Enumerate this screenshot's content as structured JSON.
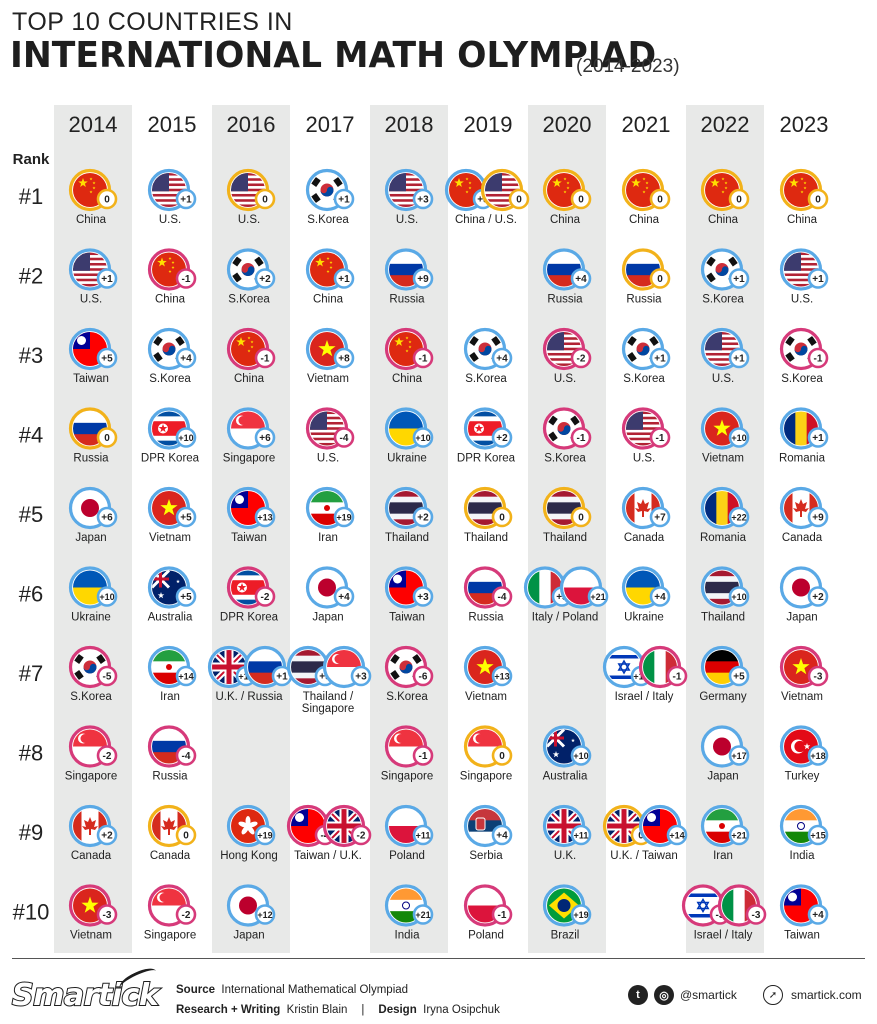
{
  "header": {
    "line1": "TOP 10 COUNTRIES IN",
    "line2": "INTERNATIONAL MATH OLYMPIAD",
    "years": "(2014-2023)"
  },
  "chart_data": {
    "type": "table",
    "rank_label": "Rank",
    "years": [
      "2014",
      "2015",
      "2016",
      "2017",
      "2018",
      "2019",
      "2020",
      "2021",
      "2022",
      "2023"
    ],
    "ranks": [
      "#1",
      "#2",
      "#3",
      "#4",
      "#5",
      "#6",
      "#7",
      "#8",
      "#9",
      "#10"
    ],
    "cells": [
      [
        {
          "label": "China",
          "flags": [
            "CN"
          ],
          "changes": [
            "0"
          ]
        },
        {
          "label": "U.S.",
          "flags": [
            "US"
          ],
          "changes": [
            "+1"
          ]
        },
        {
          "label": "U.S.",
          "flags": [
            "US"
          ],
          "changes": [
            "0"
          ]
        },
        {
          "label": "S.Korea",
          "flags": [
            "KR"
          ],
          "changes": [
            "+1"
          ]
        },
        {
          "label": "U.S.",
          "flags": [
            "US"
          ],
          "changes": [
            "+3"
          ]
        },
        {
          "label": "China / U.S.",
          "flags": [
            "CN",
            "US"
          ],
          "changes": [
            "+3",
            "0"
          ]
        },
        {
          "label": "China",
          "flags": [
            "CN"
          ],
          "changes": [
            "0"
          ]
        },
        {
          "label": "China",
          "flags": [
            "CN"
          ],
          "changes": [
            "0"
          ]
        },
        {
          "label": "China",
          "flags": [
            "CN"
          ],
          "changes": [
            "0"
          ]
        },
        {
          "label": "China",
          "flags": [
            "CN"
          ],
          "changes": [
            "0"
          ]
        }
      ],
      [
        {
          "label": "U.S.",
          "flags": [
            "US"
          ],
          "changes": [
            "+1"
          ]
        },
        {
          "label": "China",
          "flags": [
            "CN"
          ],
          "changes": [
            "-1"
          ]
        },
        {
          "label": "S.Korea",
          "flags": [
            "KR"
          ],
          "changes": [
            "+2"
          ]
        },
        {
          "label": "China",
          "flags": [
            "CN"
          ],
          "changes": [
            "+1"
          ]
        },
        {
          "label": "Russia",
          "flags": [
            "RU"
          ],
          "changes": [
            "+9"
          ]
        },
        null,
        {
          "label": "Russia",
          "flags": [
            "RU"
          ],
          "changes": [
            "+4"
          ]
        },
        {
          "label": "Russia",
          "flags": [
            "RU"
          ],
          "changes": [
            "0"
          ]
        },
        {
          "label": "S.Korea",
          "flags": [
            "KR"
          ],
          "changes": [
            "+1"
          ]
        },
        {
          "label": "U.S.",
          "flags": [
            "US"
          ],
          "changes": [
            "+1"
          ]
        }
      ],
      [
        {
          "label": "Taiwan",
          "flags": [
            "TW"
          ],
          "changes": [
            "+5"
          ]
        },
        {
          "label": "S.Korea",
          "flags": [
            "KR"
          ],
          "changes": [
            "+4"
          ]
        },
        {
          "label": "China",
          "flags": [
            "CN"
          ],
          "changes": [
            "-1"
          ]
        },
        {
          "label": "Vietnam",
          "flags": [
            "VN"
          ],
          "changes": [
            "+8"
          ]
        },
        {
          "label": "China",
          "flags": [
            "CN"
          ],
          "changes": [
            "-1"
          ]
        },
        {
          "label": "S.Korea",
          "flags": [
            "KR"
          ],
          "changes": [
            "+4"
          ]
        },
        {
          "label": "U.S.",
          "flags": [
            "US"
          ],
          "changes": [
            "-2"
          ]
        },
        {
          "label": "S.Korea",
          "flags": [
            "KR"
          ],
          "changes": [
            "+1"
          ]
        },
        {
          "label": "U.S.",
          "flags": [
            "US"
          ],
          "changes": [
            "+1"
          ]
        },
        {
          "label": "S.Korea",
          "flags": [
            "KR"
          ],
          "changes": [
            "-1"
          ]
        }
      ],
      [
        {
          "label": "Russia",
          "flags": [
            "RU"
          ],
          "changes": [
            "0"
          ]
        },
        {
          "label": "DPR Korea",
          "flags": [
            "KP"
          ],
          "changes": [
            "+10"
          ]
        },
        {
          "label": "Singapore",
          "flags": [
            "SG"
          ],
          "changes": [
            "+6"
          ]
        },
        {
          "label": "U.S.",
          "flags": [
            "US"
          ],
          "changes": [
            "-4"
          ]
        },
        {
          "label": "Ukraine",
          "flags": [
            "UA"
          ],
          "changes": [
            "+10"
          ]
        },
        {
          "label": "DPR Korea",
          "flags": [
            "KP"
          ],
          "changes": [
            "+2"
          ]
        },
        {
          "label": "S.Korea",
          "flags": [
            "KR"
          ],
          "changes": [
            "-1"
          ]
        },
        {
          "label": "U.S.",
          "flags": [
            "US"
          ],
          "changes": [
            "-1"
          ]
        },
        {
          "label": "Vietnam",
          "flags": [
            "VN"
          ],
          "changes": [
            "+10"
          ]
        },
        {
          "label": "Romania",
          "flags": [
            "RO"
          ],
          "changes": [
            "+1"
          ]
        }
      ],
      [
        {
          "label": "Japan",
          "flags": [
            "JP"
          ],
          "changes": [
            "+6"
          ]
        },
        {
          "label": "Vietnam",
          "flags": [
            "VN"
          ],
          "changes": [
            "+5"
          ]
        },
        {
          "label": "Taiwan",
          "flags": [
            "TW"
          ],
          "changes": [
            "+13"
          ]
        },
        {
          "label": "Iran",
          "flags": [
            "IR"
          ],
          "changes": [
            "+19"
          ]
        },
        {
          "label": "Thailand",
          "flags": [
            "TH"
          ],
          "changes": [
            "+2"
          ]
        },
        {
          "label": "Thailand",
          "flags": [
            "TH"
          ],
          "changes": [
            "0"
          ]
        },
        {
          "label": "Thailand",
          "flags": [
            "TH"
          ],
          "changes": [
            "0"
          ]
        },
        {
          "label": "Canada",
          "flags": [
            "CA"
          ],
          "changes": [
            "+7"
          ]
        },
        {
          "label": "Romania",
          "flags": [
            "RO"
          ],
          "changes": [
            "+22"
          ]
        },
        {
          "label": "Canada",
          "flags": [
            "CA"
          ],
          "changes": [
            "+9"
          ]
        }
      ],
      [
        {
          "label": "Ukraine",
          "flags": [
            "UA"
          ],
          "changes": [
            "+10"
          ]
        },
        {
          "label": "Australia",
          "flags": [
            "AU"
          ],
          "changes": [
            "+5"
          ]
        },
        {
          "label": "DPR Korea",
          "flags": [
            "KP"
          ],
          "changes": [
            "-2"
          ]
        },
        {
          "label": "Japan",
          "flags": [
            "JP"
          ],
          "changes": [
            "+4"
          ]
        },
        {
          "label": "Taiwan",
          "flags": [
            "TW"
          ],
          "changes": [
            "+3"
          ]
        },
        {
          "label": "Russia",
          "flags": [
            "RU"
          ],
          "changes": [
            "-4"
          ]
        },
        {
          "label": "Italy / Poland",
          "flags": [
            "IT",
            "PL"
          ],
          "changes": [
            "+3",
            "+21"
          ]
        },
        {
          "label": "Ukraine",
          "flags": [
            "UA"
          ],
          "changes": [
            "+4"
          ]
        },
        {
          "label": "Thailand",
          "flags": [
            "TH"
          ],
          "changes": [
            "+10"
          ]
        },
        {
          "label": "Japan",
          "flags": [
            "JP"
          ],
          "changes": [
            "+2"
          ]
        }
      ],
      [
        {
          "label": "S.Korea",
          "flags": [
            "KR"
          ],
          "changes": [
            "-5"
          ]
        },
        {
          "label": "Iran",
          "flags": [
            "IR"
          ],
          "changes": [
            "+14"
          ]
        },
        {
          "label": "U.K. / Russia",
          "flags": [
            "GB",
            "RU"
          ],
          "changes": [
            "+15",
            "+1"
          ]
        },
        {
          "label": "Thailand / Singapore",
          "flags": [
            "TH",
            "SG"
          ],
          "changes": [
            "+5",
            "+3"
          ]
        },
        {
          "label": "S.Korea",
          "flags": [
            "KR"
          ],
          "changes": [
            "-6"
          ]
        },
        {
          "label": "Vietnam",
          "flags": [
            "VN"
          ],
          "changes": [
            "+13"
          ]
        },
        null,
        {
          "label": "Israel / Italy",
          "flags": [
            "IL",
            "IT"
          ],
          "changes": [
            "+14",
            "-1"
          ]
        },
        {
          "label": "Germany",
          "flags": [
            "DE"
          ],
          "changes": [
            "+5"
          ]
        },
        {
          "label": "Vietnam",
          "flags": [
            "VN"
          ],
          "changes": [
            "-3"
          ]
        }
      ],
      [
        {
          "label": "Singapore",
          "flags": [
            "SG"
          ],
          "changes": [
            "-2"
          ]
        },
        {
          "label": "Russia",
          "flags": [
            "RU"
          ],
          "changes": [
            "-4"
          ]
        },
        null,
        null,
        {
          "label": "Singapore",
          "flags": [
            "SG"
          ],
          "changes": [
            "-1"
          ]
        },
        {
          "label": "Singapore",
          "flags": [
            "SG"
          ],
          "changes": [
            "0"
          ]
        },
        {
          "label": "Australia",
          "flags": [
            "AU"
          ],
          "changes": [
            "+10"
          ]
        },
        null,
        {
          "label": "Japan",
          "flags": [
            "JP"
          ],
          "changes": [
            "+17"
          ]
        },
        {
          "label": "Turkey",
          "flags": [
            "TR"
          ],
          "changes": [
            "+18"
          ]
        }
      ],
      [
        {
          "label": "Canada",
          "flags": [
            "CA"
          ],
          "changes": [
            "+2"
          ]
        },
        {
          "label": "Canada",
          "flags": [
            "CA"
          ],
          "changes": [
            "0"
          ]
        },
        {
          "label": "Hong Kong",
          "flags": [
            "HK"
          ],
          "changes": [
            "+19"
          ]
        },
        {
          "label": "Taiwan / U.K.",
          "flags": [
            "TW",
            "GB"
          ],
          "changes": [
            "-4",
            "-2"
          ]
        },
        {
          "label": "Poland",
          "flags": [
            "PL"
          ],
          "changes": [
            "+11"
          ]
        },
        {
          "label": "Serbia",
          "flags": [
            "RS"
          ],
          "changes": [
            "+4"
          ]
        },
        {
          "label": "U.K.",
          "flags": [
            "GB"
          ],
          "changes": [
            "+11"
          ]
        },
        {
          "label": "U.K. / Taiwan",
          "flags": [
            "GB",
            "TW"
          ],
          "changes": [
            "0",
            "+14"
          ]
        },
        {
          "label": "Iran",
          "flags": [
            "IR"
          ],
          "changes": [
            "+21"
          ]
        },
        {
          "label": "India",
          "flags": [
            "IN"
          ],
          "changes": [
            "+15"
          ]
        }
      ],
      [
        {
          "label": "Vietnam",
          "flags": [
            "VN"
          ],
          "changes": [
            "-3"
          ]
        },
        {
          "label": "Singapore",
          "flags": [
            "SG"
          ],
          "changes": [
            "-2"
          ]
        },
        {
          "label": "Japan",
          "flags": [
            "JP"
          ],
          "changes": [
            "+12"
          ]
        },
        null,
        {
          "label": "India",
          "flags": [
            "IN"
          ],
          "changes": [
            "+21"
          ]
        },
        {
          "label": "Poland",
          "flags": [
            "PL"
          ],
          "changes": [
            "-1"
          ]
        },
        {
          "label": "Brazil",
          "flags": [
            "BR"
          ],
          "changes": [
            "+19"
          ]
        },
        null,
        {
          "label": "Israel / Italy",
          "flags": [
            "IL",
            "IT"
          ],
          "changes": [
            "-3",
            "-3"
          ]
        },
        {
          "label": "Taiwan",
          "flags": [
            "TW"
          ],
          "changes": [
            "+4"
          ]
        }
      ]
    ],
    "colors": {
      "up": "#5aa9e6",
      "down": "#d63a7a",
      "same": "#f2b21a",
      "shaded_column": "#e8e9e8"
    }
  },
  "footer": {
    "logo": "Smartick",
    "source_label": "Source",
    "source": "International Mathematical Olympiad",
    "research_label": "Research + Writing",
    "research": "Kristin Blain",
    "separator": "|",
    "design_label": "Design",
    "design": "Iryna Osipchuk",
    "twitter_icon": "twitter-icon",
    "instagram_icon": "instagram-icon",
    "handle": "@smartick",
    "site": "smartick.com"
  }
}
